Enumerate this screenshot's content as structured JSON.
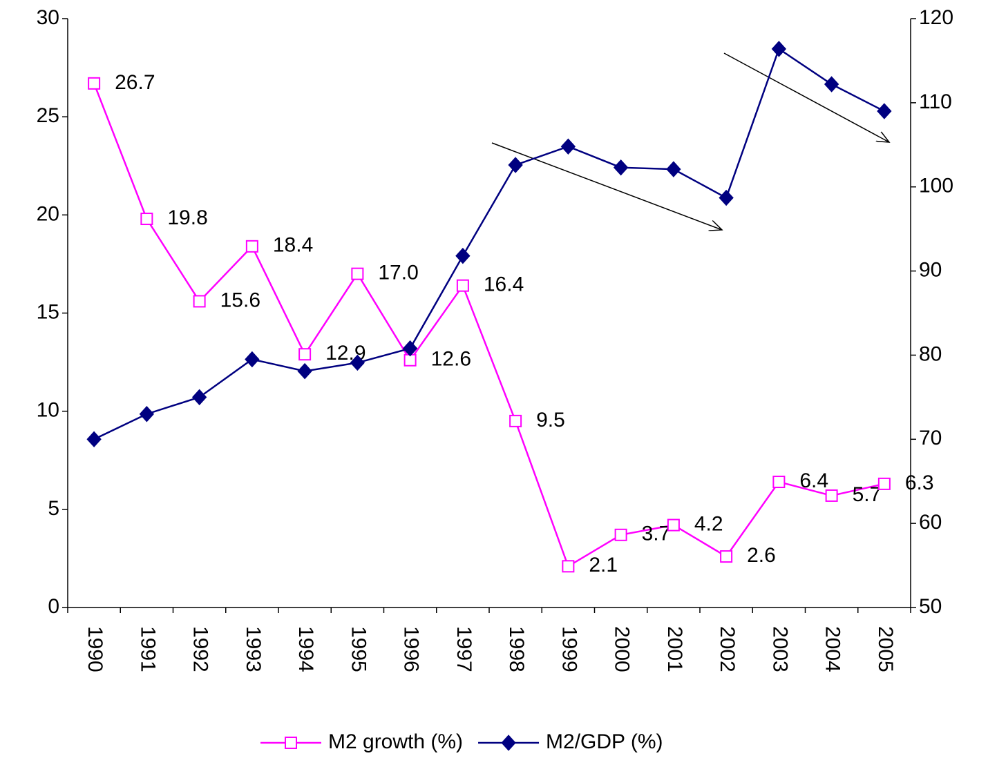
{
  "chart_data": {
    "type": "line",
    "categories": [
      "1990",
      "1991",
      "1992",
      "1993",
      "1994",
      "1995",
      "1996",
      "1997",
      "1998",
      "1999",
      "2000",
      "2001",
      "2002",
      "2003",
      "2004",
      "2005"
    ],
    "series": [
      {
        "name": "M2 growth (%)",
        "color": "#ff00ff",
        "marker": "square",
        "values": [
          26.7,
          19.8,
          15.6,
          18.4,
          12.9,
          17.0,
          12.6,
          16.4,
          9.5,
          2.1,
          3.7,
          4.2,
          2.6,
          6.4,
          5.7,
          6.3
        ],
        "value_labels": [
          "26.7",
          "19.8",
          "15.6",
          "18.4",
          "12.9",
          "17.0",
          "12.6",
          "16.4",
          "9.5",
          "2.1",
          "3.7",
          "4.2",
          "2.6",
          "6.4",
          "5.7",
          "6.3"
        ]
      },
      {
        "name": "M2/GDP (%)",
        "color": "#000080",
        "marker": "diamond",
        "axis": "y2",
        "values": [
          70.0,
          73.0,
          75.0,
          79.5,
          78.1,
          79.1,
          80.8,
          91.8,
          102.6,
          104.8,
          102.3,
          102.1,
          98.7,
          116.4,
          112.2,
          109.0
        ]
      }
    ],
    "ylim": [
      0,
      30
    ],
    "yticks": [
      0,
      5,
      10,
      15,
      20,
      25,
      30
    ],
    "y2lim": [
      50,
      120
    ],
    "y2ticks": [
      50,
      60,
      70,
      80,
      90,
      100,
      110,
      120
    ],
    "grid": false,
    "legend": "bottom"
  }
}
